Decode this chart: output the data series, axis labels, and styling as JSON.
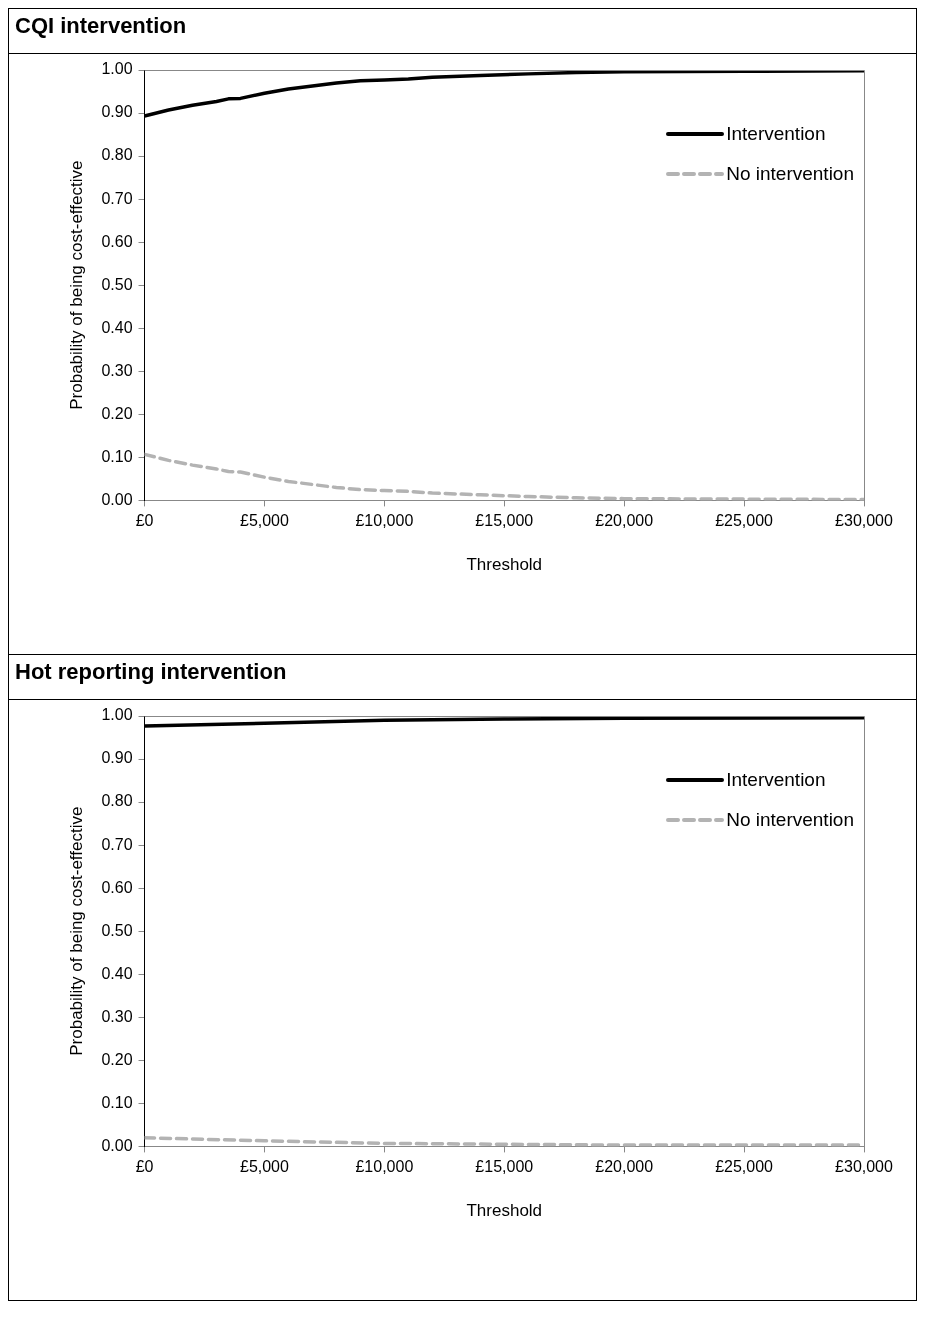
{
  "chart_data": [
    {
      "type": "line",
      "title": "CQI intervention",
      "xlabel": "Threshold",
      "ylabel": "Probability of being cost-effective",
      "legend": "top right",
      "grid": false,
      "marker": "none",
      "xlim": [
        0,
        30000
      ],
      "ylim": [
        0,
        1
      ],
      "xticks": [
        {
          "value": 0,
          "label": "£0"
        },
        {
          "value": 5000,
          "label": "£5,000"
        },
        {
          "value": 10000,
          "label": "£10,000"
        },
        {
          "value": 15000,
          "label": "£15,000"
        },
        {
          "value": 20000,
          "label": "£20,000"
        },
        {
          "value": 25000,
          "label": "£25,000"
        },
        {
          "value": 30000,
          "label": "£30,000"
        }
      ],
      "yticks": [
        {
          "value": 0,
          "label": "0.00"
        },
        {
          "value": 0.1,
          "label": "0.10"
        },
        {
          "value": 0.2,
          "label": "0.20"
        },
        {
          "value": 0.3,
          "label": "0.30"
        },
        {
          "value": 0.4,
          "label": "0.40"
        },
        {
          "value": 0.5,
          "label": "0.50"
        },
        {
          "value": 0.6,
          "label": "0.60"
        },
        {
          "value": 0.7,
          "label": "0.70"
        },
        {
          "value": 0.8,
          "label": "0.80"
        },
        {
          "value": 0.9,
          "label": "0.90"
        },
        {
          "value": 1,
          "label": "1.00"
        }
      ],
      "x": [
        0,
        500,
        1000,
        2000,
        3000,
        3500,
        4000,
        5000,
        6000,
        7000,
        8000,
        9000,
        10000,
        11000,
        12000,
        14000,
        16000,
        18000,
        20000,
        25000,
        30000
      ],
      "series": [
        {
          "name": "Intervention",
          "color": "#000000",
          "line_style": "solid",
          "values": [
            0.893,
            0.9,
            0.907,
            0.918,
            0.927,
            0.933,
            0.934,
            0.946,
            0.956,
            0.963,
            0.97,
            0.975,
            0.977,
            0.979,
            0.983,
            0.987,
            0.991,
            0.994,
            0.996,
            0.997,
            0.998
          ]
        },
        {
          "name": "No intervention",
          "color": "#b3b3b3",
          "line_style": "dashed",
          "values": [
            0.107,
            0.1,
            0.093,
            0.082,
            0.073,
            0.067,
            0.066,
            0.054,
            0.044,
            0.037,
            0.03,
            0.025,
            0.023,
            0.021,
            0.017,
            0.013,
            0.009,
            0.006,
            0.004,
            0.003,
            0.002
          ]
        }
      ]
    },
    {
      "type": "line",
      "title": "Hot reporting intervention",
      "xlabel": "Threshold",
      "ylabel": "Probability of being cost-effective",
      "legend": "top right",
      "grid": false,
      "marker": "none",
      "xlim": [
        0,
        30000
      ],
      "ylim": [
        0,
        1
      ],
      "xticks": [
        {
          "value": 0,
          "label": "£0"
        },
        {
          "value": 5000,
          "label": "£5,000"
        },
        {
          "value": 10000,
          "label": "£10,000"
        },
        {
          "value": 15000,
          "label": "£15,000"
        },
        {
          "value": 20000,
          "label": "£20,000"
        },
        {
          "value": 25000,
          "label": "£25,000"
        },
        {
          "value": 30000,
          "label": "£30,000"
        }
      ],
      "yticks": [
        {
          "value": 0,
          "label": "0.00"
        },
        {
          "value": 0.1,
          "label": "0.10"
        },
        {
          "value": 0.2,
          "label": "0.20"
        },
        {
          "value": 0.3,
          "label": "0.30"
        },
        {
          "value": 0.4,
          "label": "0.40"
        },
        {
          "value": 0.5,
          "label": "0.50"
        },
        {
          "value": 0.6,
          "label": "0.60"
        },
        {
          "value": 0.7,
          "label": "0.70"
        },
        {
          "value": 0.8,
          "label": "0.80"
        },
        {
          "value": 0.9,
          "label": "0.90"
        },
        {
          "value": 1,
          "label": "1.00"
        }
      ],
      "x": [
        0,
        5000,
        10000,
        15000,
        20000,
        30000
      ],
      "series": [
        {
          "name": "Intervention",
          "color": "#000000",
          "line_style": "solid",
          "values": [
            0.977,
            0.983,
            0.99,
            0.993,
            0.995,
            0.996
          ]
        },
        {
          "name": "No intervention",
          "color": "#b3b3b3",
          "line_style": "dashed",
          "values": [
            0.02,
            0.013,
            0.007,
            0.005,
            0.003,
            0.003
          ]
        }
      ]
    }
  ]
}
